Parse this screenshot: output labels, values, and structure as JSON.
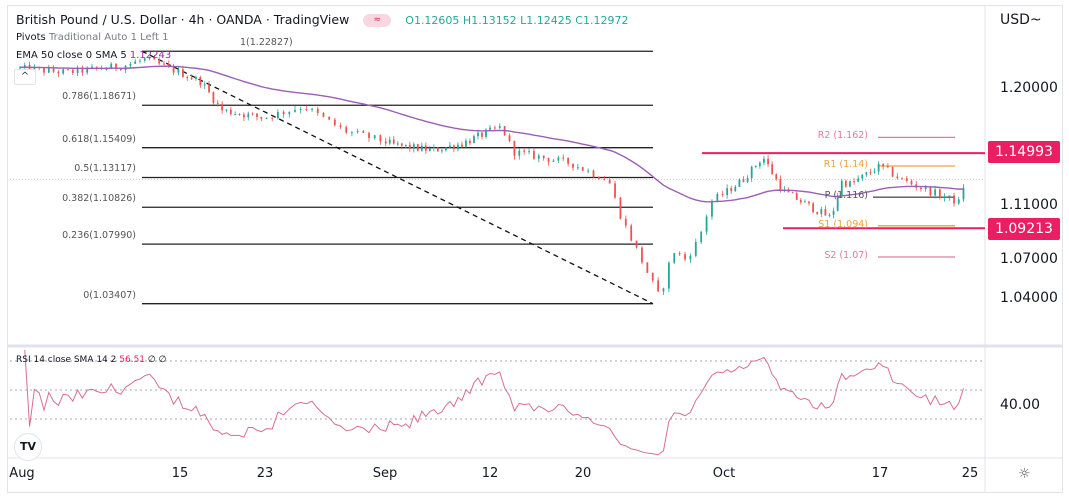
{
  "header": {
    "title": "British Pound / U.S. Dollar · 4h · OANDA · TradingView",
    "ohlc": "O1.12605 H1.13152 L1.12425 C1.12972"
  },
  "legends": {
    "pivots_name": "Pivots",
    "pivots_params": "Traditional Auto 1 Left 1",
    "ema_name": "EMA 50 close 0 SMA 5",
    "ema_value": "1.12243",
    "rsi_name": "RSI 14 close SMA 14 2",
    "rsi_value": "56.51",
    "rsi_extra": "∅ ∅"
  },
  "currency": "USD~",
  "colors": {
    "up": "#26a69a",
    "down": "#ef5350",
    "ema": "#9c5fb5",
    "rsi": "#d86e92",
    "highlight": "#e91e63",
    "pivot_r": "#f0a03c",
    "pivot_s2": "#e07aa0"
  },
  "chart_data": [
    {
      "type": "candlestick",
      "symbol": "GBPUSD",
      "timeframe": "4h",
      "y_ticks": [
        "1.20000",
        "1.11000",
        "1.07000",
        "1.04000"
      ],
      "ylim": [
        1.01,
        1.265
      ],
      "x_ticks": [
        "Aug",
        "15",
        "23",
        "Sep",
        "12",
        "20",
        "Oct",
        "17",
        "25"
      ],
      "approx_path": [
        [
          "Aug 1",
          1.215
        ],
        [
          "Aug 5",
          1.212
        ],
        [
          "Aug 10",
          1.217
        ],
        [
          "Aug 12",
          1.222
        ],
        [
          "Aug 17",
          1.205
        ],
        [
          "Aug 19",
          1.183
        ],
        [
          "Aug 23",
          1.177
        ],
        [
          "Aug 26",
          1.186
        ],
        [
          "Aug 29",
          1.167
        ],
        [
          "Sep 2",
          1.156
        ],
        [
          "Sep 6",
          1.152
        ],
        [
          "Sep 9",
          1.157
        ],
        [
          "Sep 13",
          1.17
        ],
        [
          "Sep 14",
          1.151
        ],
        [
          "Sep 19",
          1.142
        ],
        [
          "Sep 22",
          1.129
        ],
        [
          "Sep 23",
          1.1
        ],
        [
          "Sep 26",
          1.038
        ],
        [
          "Sep 27",
          1.075
        ],
        [
          "Sep 28",
          1.068
        ],
        [
          "Sep 29",
          1.083
        ],
        [
          "Sep 30",
          1.113
        ],
        [
          "Oct 3",
          1.13
        ],
        [
          "Oct 5",
          1.147
        ],
        [
          "Oct 7",
          1.121
        ],
        [
          "Oct 10",
          1.108
        ],
        [
          "Oct 12",
          1.1
        ],
        [
          "Oct 13",
          1.128
        ],
        [
          "Oct 14",
          1.126
        ],
        [
          "Oct 17",
          1.14
        ],
        [
          "Oct 19",
          1.129
        ],
        [
          "Oct 21",
          1.122
        ],
        [
          "Oct 24",
          1.112
        ],
        [
          "Oct 24 close",
          1.12972
        ]
      ],
      "fibonacci": [
        {
          "label": "1(1.22827)",
          "value": 1.22827
        },
        {
          "label": "0.786(1.18671)",
          "value": 1.18671
        },
        {
          "label": "0.618(1.15409)",
          "value": 1.15409
        },
        {
          "label": "0.5(1.13117)",
          "value": 1.13117
        },
        {
          "label": "0.382(1.10826)",
          "value": 1.10826
        },
        {
          "label": "0.236(1.07990)",
          "value": 1.0799
        },
        {
          "label": "0(1.03407)",
          "value": 1.03407
        }
      ],
      "pivots": [
        {
          "label": "R2 (1.162)",
          "value": 1.162,
          "color": "#e07aa0"
        },
        {
          "label": "R1 (1.14)",
          "value": 1.14,
          "color": "#f0a03c"
        },
        {
          "label": "P (1.116)",
          "value": 1.116,
          "color": "#555555"
        },
        {
          "label": "S1 (1.094)",
          "value": 1.094,
          "color": "#f0a03c"
        },
        {
          "label": "S2 (1.07)",
          "value": 1.07,
          "color": "#e07aa0"
        }
      ],
      "horizontal_levels": [
        {
          "label": "1.14993",
          "value": 1.14993
        },
        {
          "label": "1.09213",
          "value": 1.09213
        }
      ],
      "last_price": 1.12972
    },
    {
      "type": "line",
      "name": "RSI 14",
      "levels": [
        70,
        50,
        30
      ],
      "y_ticks": [
        "40.00"
      ],
      "last_value": 56.51
    }
  ]
}
